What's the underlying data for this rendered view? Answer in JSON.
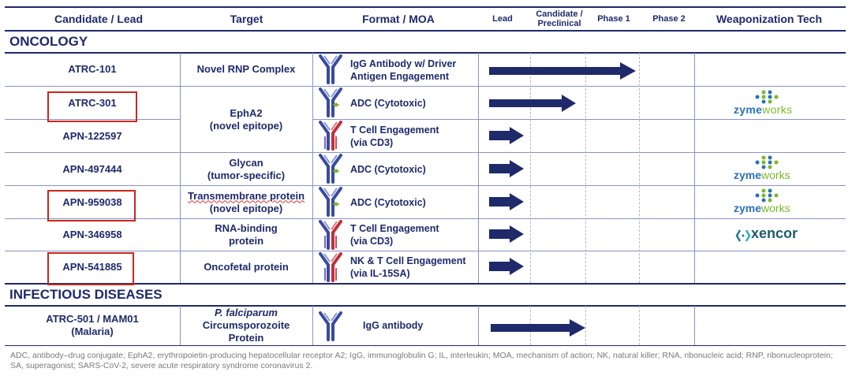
{
  "header": {
    "candidate": "Candidate / Lead",
    "target": "Target",
    "format": "Format / MOA",
    "lead": "Lead",
    "preclinical": "Candidate / Preclinical",
    "phase1": "Phase 1",
    "phase2": "Phase 2",
    "weapon": "Weaponization Tech"
  },
  "sections": {
    "oncology": "ONCOLOGY",
    "infectious": "INFECTIOUS DISEASES"
  },
  "rows": [
    {
      "candidate": "ATRC-101",
      "target": "Novel RNP Complex",
      "format_line1": "IgG Antibody w/ Driver",
      "format_line2": "Antigen Engagement",
      "antibody_type": "IgG",
      "stage": "Phase 1",
      "tech": ""
    },
    {
      "candidate": "ATRC-301",
      "target": "EphA2",
      "target_line2": "(novel epitope)",
      "format_line1": "ADC (Cytotoxic)",
      "antibody_type": "ADC",
      "stage": "Candidate / Preclinical",
      "tech": "zymeworks",
      "highlighted": true
    },
    {
      "candidate": "APN-122597",
      "format_line1": "T Cell Engagement",
      "format_line2": "(via CD3)",
      "antibody_type": "bispecific",
      "stage": "Lead",
      "tech": ""
    },
    {
      "candidate": "APN-497444",
      "target": "Glycan",
      "target_line2": "(tumor-specific)",
      "format_line1": "ADC (Cytotoxic)",
      "antibody_type": "ADC",
      "stage": "Lead",
      "tech": "zymeworks"
    },
    {
      "candidate": "APN-959038",
      "target": "Transmembrane protein",
      "target_line2": "(novel epitope)",
      "format_line1": "ADC (Cytotoxic)",
      "antibody_type": "ADC",
      "stage": "Lead",
      "tech": "zymeworks",
      "highlighted": true
    },
    {
      "candidate": "APN-346958",
      "target": "RNA-binding",
      "target_line2": "protein",
      "format_line1": "T Cell Engagement",
      "format_line2": "(via CD3)",
      "antibody_type": "bispecific",
      "stage": "Lead",
      "tech": "xencor"
    },
    {
      "candidate": "APN-541885",
      "target": "Oncofetal protein",
      "format_line1": "NK & T Cell Engagement",
      "format_line2": "(via IL-15SA)",
      "antibody_type": "bispecific",
      "stage": "Lead",
      "tech": "",
      "highlighted": true
    }
  ],
  "infectious_row": {
    "candidate_line1": "ATRC-501 / MAM01",
    "candidate_line2": "(Malaria)",
    "target_line1": "P. falciparum",
    "target_line2": "Circumsporozoite",
    "target_line3": "Protein",
    "format_line1": "IgG antibody",
    "stage": "Candidate / Preclinical"
  },
  "logos": {
    "zyme": "zyme",
    "works": "works",
    "xencor": "xencor"
  },
  "colors": {
    "navy": "#1f2a6b",
    "red": "#c62a1e",
    "green": "#7ab929",
    "blue": "#2a72b5",
    "teal": "#1f7c8c"
  },
  "footnote": "ADC, antibody–drug conjugate; EphA2, erythropoietin-producing hepatocellular receptor A2; IgG, immunoglobulin G; IL, interleukin; MOA, mechanism of action; NK, natural killer; RNA, ribonucleic acid; RNP, ribonucleoprotein; SA, superagonist; SARS-CoV-2, severe acute respiratory syndrome coronavirus 2."
}
